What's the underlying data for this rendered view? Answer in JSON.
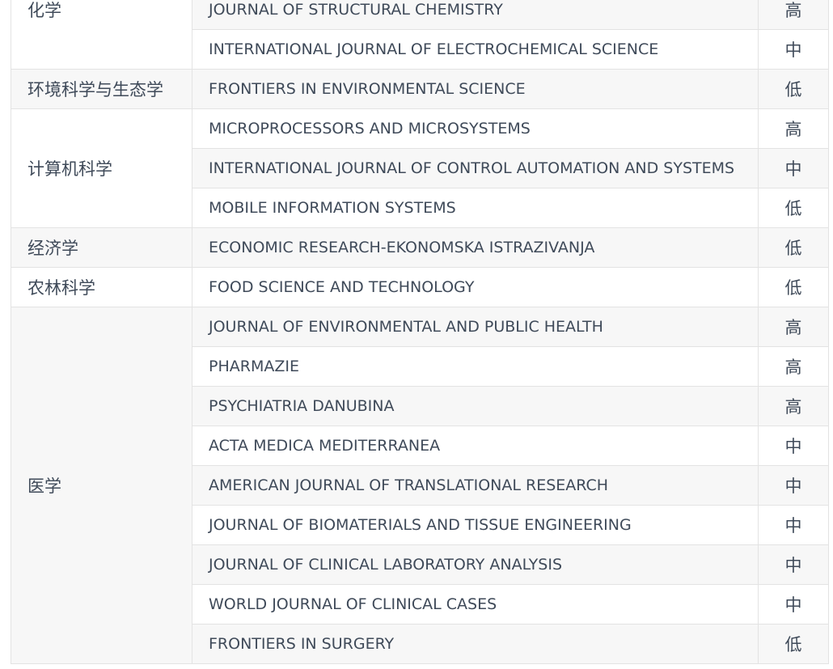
{
  "table": {
    "groups": [
      {
        "category": "化学",
        "rows": [
          [
            "JOURNAL OF STRUCTURAL CHEMISTRY",
            "高"
          ],
          [
            "INTERNATIONAL JOURNAL OF ELECTROCHEMICAL SCIENCE",
            "中"
          ]
        ]
      },
      {
        "category": "环境科学与生态学",
        "rows": [
          [
            "FRONTIERS IN ENVIRONMENTAL SCIENCE",
            "低"
          ]
        ]
      },
      {
        "category": "计算机科学",
        "rows": [
          [
            "MICROPROCESSORS AND MICROSYSTEMS",
            "高"
          ],
          [
            "INTERNATIONAL JOURNAL OF CONTROL AUTOMATION AND SYSTEMS",
            "中"
          ],
          [
            "MOBILE INFORMATION SYSTEMS",
            "低"
          ]
        ]
      },
      {
        "category": "经济学",
        "rows": [
          [
            "ECONOMIC RESEARCH-EKONOMSKA ISTRAZIVANJA",
            "低"
          ]
        ]
      },
      {
        "category": "农林科学",
        "rows": [
          [
            "FOOD SCIENCE AND TECHNOLOGY",
            "低"
          ]
        ]
      },
      {
        "category": "医学",
        "rows": [
          [
            "JOURNAL OF ENVIRONMENTAL AND PUBLIC HEALTH",
            "高"
          ],
          [
            "PHARMAZIE",
            "高"
          ],
          [
            "PSYCHIATRIA DANUBINA",
            "高"
          ],
          [
            "ACTA MEDICA MEDITERRANEA",
            "中"
          ],
          [
            "AMERICAN JOURNAL OF TRANSLATIONAL RESEARCH",
            "中"
          ],
          [
            "JOURNAL OF BIOMATERIALS AND TISSUE ENGINEERING",
            "中"
          ],
          [
            "JOURNAL OF CLINICAL LABORATORY ANALYSIS",
            "中"
          ],
          [
            "WORLD JOURNAL OF CLINICAL CASES",
            "中"
          ],
          [
            "FRONTIERS IN SURGERY",
            "低"
          ]
        ]
      }
    ]
  }
}
